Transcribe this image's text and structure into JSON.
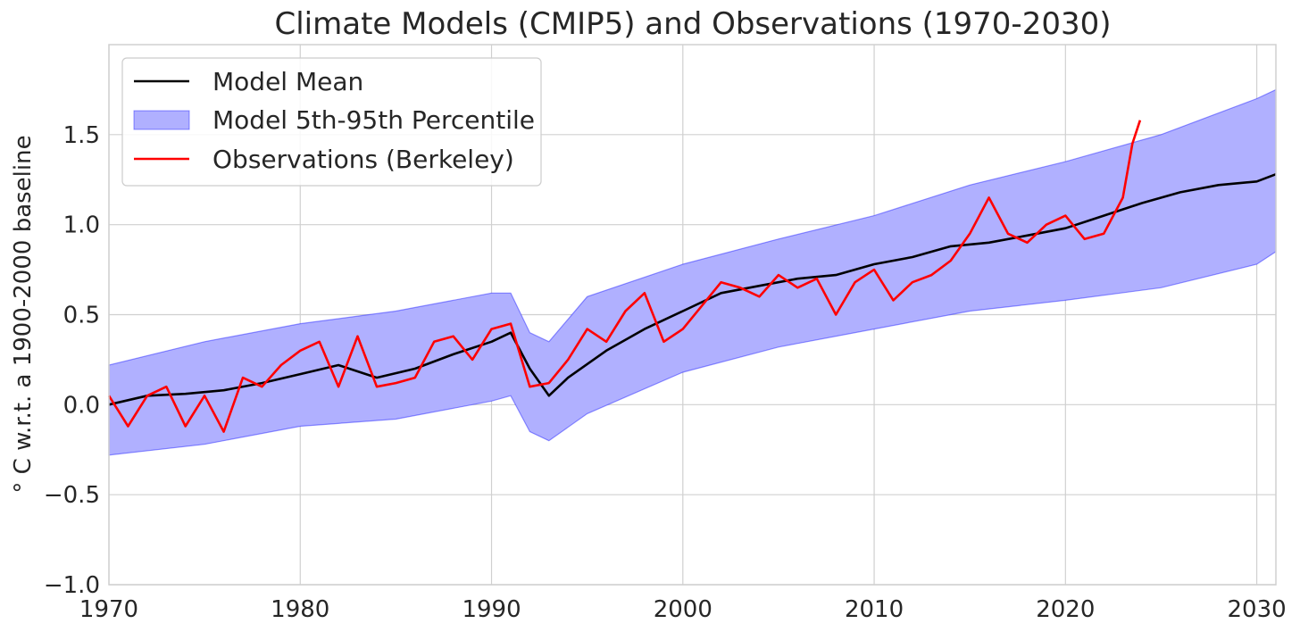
{
  "chart_data": {
    "type": "line",
    "title": "Climate Models (CMIP5) and Observations (1970-2030)",
    "xlabel": "",
    "ylabel": "$^\\circ$C w.r.t. a 1900-2000 baseline",
    "ylabel_display": "° C w.r.t. a 1900-2000 baseline",
    "xlim": [
      1970,
      2031
    ],
    "ylim": [
      -1.0,
      2.0
    ],
    "x_ticks": [
      1970,
      1980,
      1990,
      2000,
      2010,
      2020,
      2030
    ],
    "y_ticks": [
      -1.0,
      -0.5,
      0.0,
      0.5,
      1.0,
      1.5
    ],
    "x_tick_labels": [
      "1970",
      "1980",
      "1990",
      "2000",
      "2010",
      "2020",
      "2030"
    ],
    "y_tick_labels": [
      "−1.0",
      "−0.5",
      "0.0",
      "0.5",
      "1.0",
      "1.5"
    ],
    "grid": true,
    "legend_position": "top-left",
    "series": [
      {
        "name": "Model Mean",
        "kind": "line",
        "color": "#000000",
        "x": [
          1970,
          1972,
          1974,
          1976,
          1978,
          1980,
          1982,
          1984,
          1986,
          1988,
          1990,
          1991,
          1992,
          1993,
          1994,
          1996,
          1998,
          2000,
          2002,
          2004,
          2006,
          2008,
          2010,
          2012,
          2014,
          2016,
          2018,
          2020,
          2022,
          2024,
          2026,
          2028,
          2030,
          2031
        ],
        "y": [
          0.0,
          0.05,
          0.06,
          0.08,
          0.12,
          0.17,
          0.22,
          0.15,
          0.2,
          0.28,
          0.35,
          0.4,
          0.2,
          0.05,
          0.15,
          0.3,
          0.42,
          0.52,
          0.62,
          0.66,
          0.7,
          0.72,
          0.78,
          0.82,
          0.88,
          0.9,
          0.94,
          0.98,
          1.05,
          1.12,
          1.18,
          1.22,
          1.24,
          1.28
        ]
      },
      {
        "name": "Model 5th-95th Percentile",
        "kind": "band",
        "color": "#0000ff",
        "fill_color": "#b0b0ff",
        "x": [
          1970,
          1975,
          1980,
          1985,
          1990,
          1991,
          1992,
          1993,
          1995,
          2000,
          2005,
          2010,
          2015,
          2020,
          2025,
          2030,
          2031
        ],
        "lower": [
          -0.28,
          -0.22,
          -0.12,
          -0.08,
          0.02,
          0.05,
          -0.15,
          -0.2,
          -0.05,
          0.18,
          0.32,
          0.42,
          0.52,
          0.58,
          0.65,
          0.78,
          0.85
        ],
        "upper": [
          0.22,
          0.35,
          0.45,
          0.52,
          0.62,
          0.62,
          0.4,
          0.35,
          0.6,
          0.78,
          0.92,
          1.05,
          1.22,
          1.35,
          1.5,
          1.7,
          1.75
        ]
      },
      {
        "name": "Observations (Berkeley)",
        "kind": "line",
        "color": "#ff0000",
        "x": [
          1970,
          1971,
          1972,
          1973,
          1974,
          1975,
          1976,
          1977,
          1978,
          1979,
          1980,
          1981,
          1982,
          1983,
          1984,
          1985,
          1986,
          1987,
          1988,
          1989,
          1990,
          1991,
          1992,
          1993,
          1994,
          1995,
          1996,
          1997,
          1998,
          1999,
          2000,
          2001,
          2002,
          2003,
          2004,
          2005,
          2006,
          2007,
          2008,
          2009,
          2010,
          2011,
          2012,
          2013,
          2014,
          2015,
          2016,
          2017,
          2018,
          2019,
          2020,
          2021,
          2022,
          2023,
          2023.5,
          2023.9
        ],
        "y": [
          0.05,
          -0.12,
          0.05,
          0.1,
          -0.12,
          0.05,
          -0.15,
          0.15,
          0.1,
          0.22,
          0.3,
          0.35,
          0.1,
          0.38,
          0.1,
          0.12,
          0.15,
          0.35,
          0.38,
          0.25,
          0.42,
          0.45,
          0.1,
          0.12,
          0.25,
          0.42,
          0.35,
          0.52,
          0.62,
          0.35,
          0.42,
          0.55,
          0.68,
          0.65,
          0.6,
          0.72,
          0.65,
          0.7,
          0.5,
          0.68,
          0.75,
          0.58,
          0.68,
          0.72,
          0.8,
          0.95,
          1.15,
          0.95,
          0.9,
          1.0,
          1.05,
          0.92,
          0.95,
          1.15,
          1.45,
          1.58
        ]
      }
    ]
  }
}
